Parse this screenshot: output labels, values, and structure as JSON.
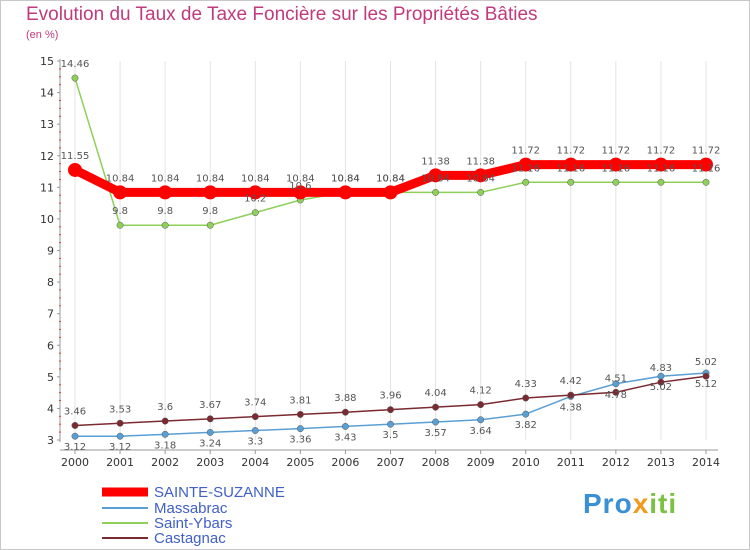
{
  "chart_data": {
    "type": "line",
    "title": "Evolution du Taux de Taxe Foncière sur les Propriétés Bâties",
    "subtitle": "(en %)",
    "xlabel": "",
    "ylabel": "",
    "ylim": [
      3,
      15
    ],
    "yticks": [
      "3",
      "4",
      "5",
      "6",
      "7",
      "8",
      "9",
      "10",
      "11",
      "12",
      "13",
      "14",
      "15"
    ],
    "categories": [
      "2000",
      "2001",
      "2002",
      "2003",
      "2004",
      "2005",
      "2006",
      "2007",
      "2008",
      "2009",
      "2010",
      "2011",
      "2012",
      "2013",
      "2014"
    ],
    "series": [
      {
        "name": "SAINTE-SUZANNE",
        "color": "#ff0000",
        "values": [
          11.55,
          10.84,
          10.84,
          10.84,
          10.84,
          10.84,
          10.84,
          10.84,
          11.38,
          11.38,
          11.72,
          11.72,
          11.72,
          11.72,
          11.72
        ],
        "labels": [
          "11.55",
          "10.84",
          "10.84",
          "10.84",
          "10.84",
          "10.84",
          "10.84",
          "10.84",
          "11.38",
          "11.38",
          "11.72",
          "11.72",
          "11.72",
          "11.72",
          "11.72"
        ]
      },
      {
        "name": "Massabrac",
        "color": "#5a9fd4",
        "values": [
          3.12,
          3.12,
          3.18,
          3.24,
          3.3,
          3.36,
          3.43,
          3.5,
          3.57,
          3.64,
          3.82,
          4.38,
          4.78,
          5.02,
          5.12
        ],
        "labels": [
          "3.12",
          "3.12",
          "3.18",
          "3.24",
          "3.3",
          "3.36",
          "3.43",
          "3.5",
          "3.57",
          "3.64",
          "3.82",
          "4.38",
          "4.78",
          "5.02",
          "5.12"
        ]
      },
      {
        "name": "Saint-Ybars",
        "color": "#8ed05a",
        "values": [
          14.46,
          9.8,
          9.8,
          9.8,
          10.2,
          10.6,
          10.84,
          10.84,
          10.84,
          10.84,
          11.16,
          11.16,
          11.16,
          11.16,
          11.16
        ],
        "labels": [
          "14.46",
          "9.8",
          "9.8",
          "9.8",
          "10.2",
          "10.6",
          "10.84",
          "10.84",
          "10.84",
          "10.84",
          "11.16",
          "11.16",
          "11.16",
          "11.16",
          "11.16"
        ]
      },
      {
        "name": "Castagnac",
        "color": "#7a2a30",
        "values": [
          3.46,
          3.53,
          3.6,
          3.67,
          3.74,
          3.81,
          3.88,
          3.96,
          4.04,
          4.12,
          4.33,
          4.42,
          4.51,
          4.83,
          5.02
        ],
        "labels": [
          "3.46",
          "3.53",
          "3.6",
          "3.67",
          "3.74",
          "3.81",
          "3.88",
          "3.96",
          "4.04",
          "4.12",
          "4.33",
          "4.42",
          "4.51",
          "4.83",
          "5.02"
        ]
      }
    ],
    "legend_position": "bottom-left"
  },
  "logo": {
    "part1": "Pro",
    "part2": "x",
    "part3": "iti"
  }
}
